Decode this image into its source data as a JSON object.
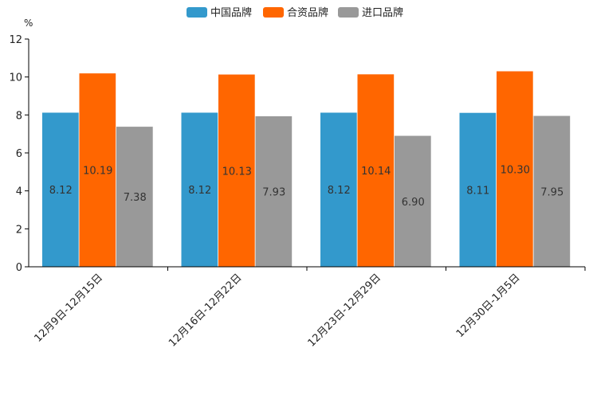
{
  "chart_data": {
    "type": "bar",
    "unit": "%",
    "categories": [
      "12月9日-12月15日",
      "12月16日-12月22日",
      "12月23日-12月29日",
      "12月30日-1月5日"
    ],
    "series": [
      {
        "name": "中国品牌",
        "color": "#3399cc",
        "values": [
          8.12,
          8.12,
          8.12,
          8.11
        ],
        "labels": [
          "8.12",
          "8.12",
          "8.12",
          "8.11"
        ]
      },
      {
        "name": "合资品牌",
        "color": "#ff6600",
        "values": [
          10.19,
          10.13,
          10.14,
          10.3
        ],
        "labels": [
          "10.19",
          "10.13",
          "10.14",
          "10.30"
        ]
      },
      {
        "name": "进口品牌",
        "color": "#999999",
        "values": [
          7.38,
          7.93,
          6.9,
          7.95
        ],
        "labels": [
          "7.38",
          "7.93",
          "6.90",
          "7.95"
        ]
      }
    ],
    "ylim": [
      0,
      12
    ],
    "yticks": [
      "0",
      "2",
      "4",
      "6",
      "8",
      "10",
      "12"
    ],
    "legend_position": "top-center",
    "grid": false
  }
}
